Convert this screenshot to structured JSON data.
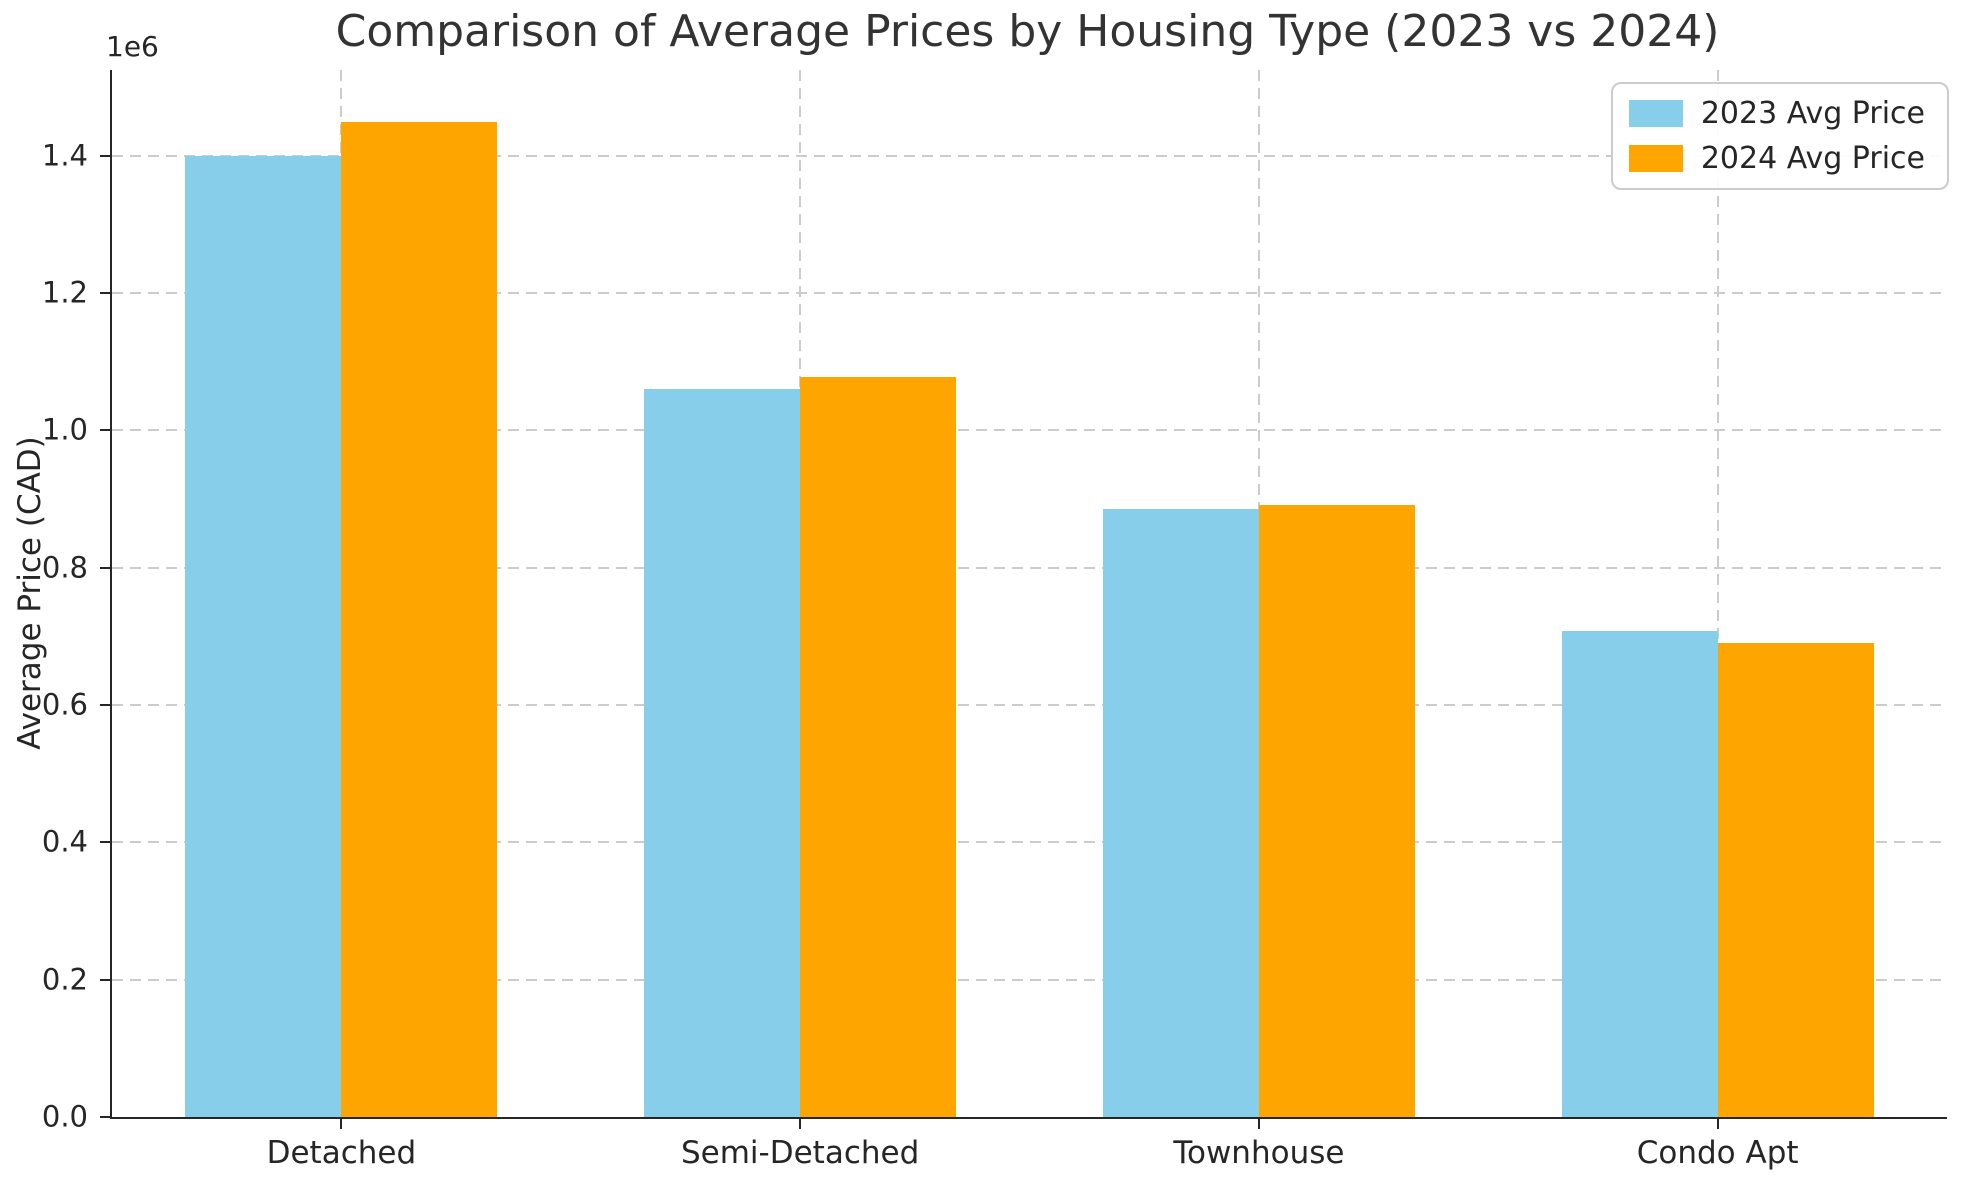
{
  "figure": {
    "background": "#ffffff"
  },
  "chart_data": {
    "type": "bar",
    "title": "Comparison of Average Prices by Housing Type (2023 vs 2024)",
    "xlabel": "",
    "ylabel": "Average Price (CAD)",
    "y_offset_label": "1e6",
    "categories": [
      "Detached",
      "Semi-Detached",
      "Townhouse",
      "Condo Apt"
    ],
    "series": [
      {
        "name": "2023 Avg Price",
        "color": "#87CEEB",
        "values": [
          1400000,
          1060000,
          885000,
          708000
        ]
      },
      {
        "name": "2024 Avg Price",
        "color": "#FFA500",
        "values": [
          1450000,
          1078000,
          892000,
          690000
        ]
      }
    ],
    "ylim": [
      0,
      1525000
    ],
    "yticks": {
      "values": [
        0,
        200000,
        400000,
        600000,
        800000,
        1000000,
        1200000,
        1400000
      ],
      "labels": [
        "0.0",
        "0.2",
        "0.4",
        "0.6",
        "0.8",
        "1.0",
        "1.2",
        "1.4"
      ]
    },
    "grid": "dashed",
    "grid_color": "#cccccc",
    "legend_position": "upper right",
    "text_color": "#262626",
    "title_color": "#333333",
    "spine_color": "#262626"
  }
}
